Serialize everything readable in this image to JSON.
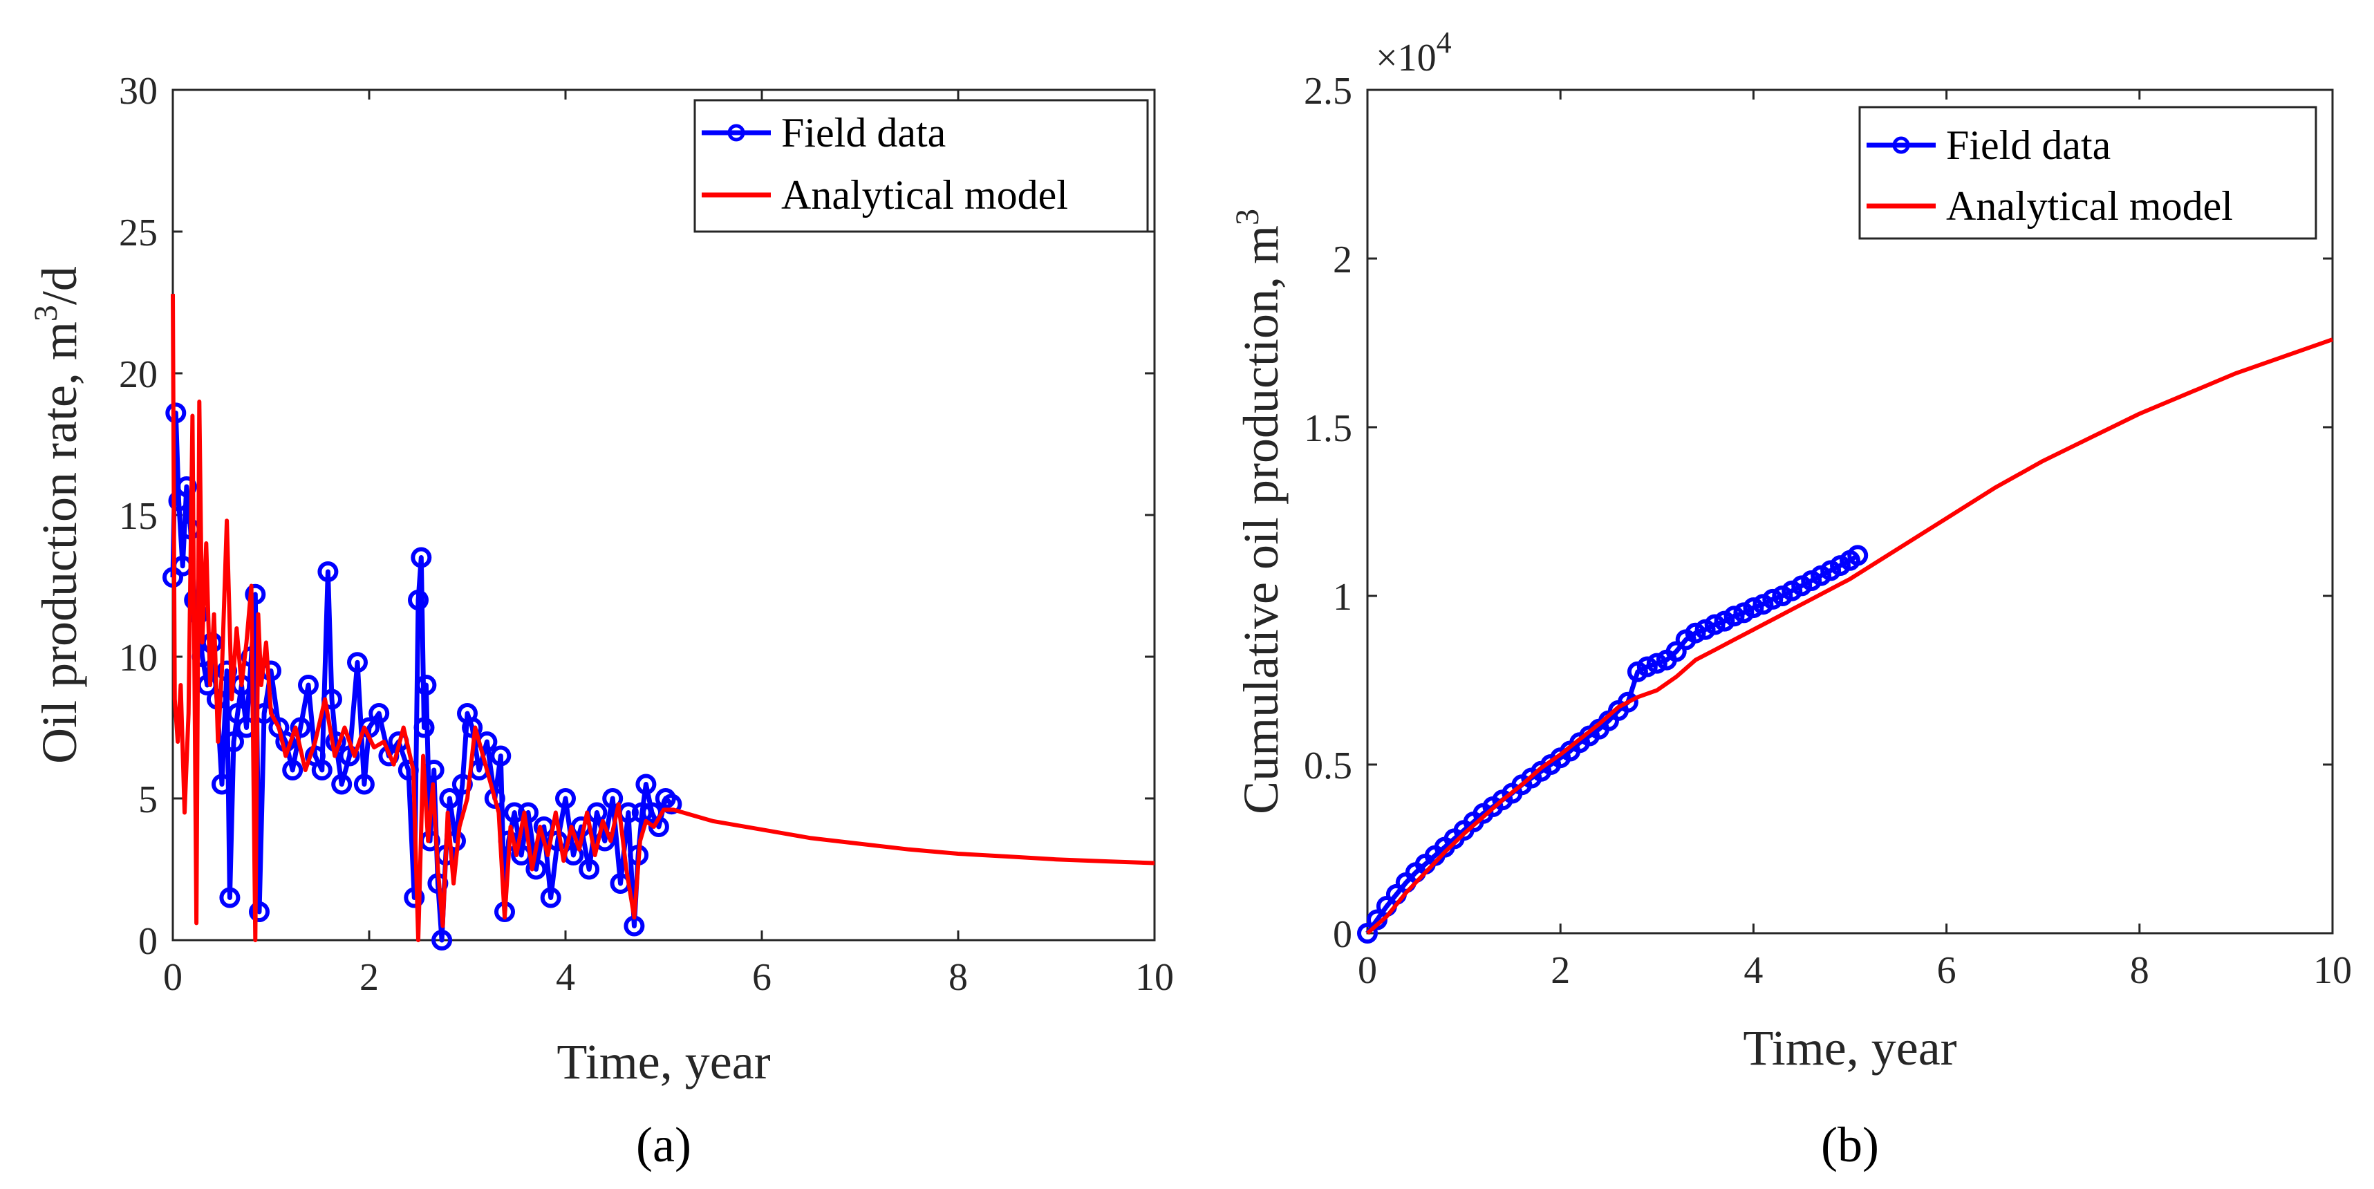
{
  "chart_data": [
    {
      "type": "line",
      "panel_label": "(a)",
      "xlabel": "Time, year",
      "ylabel": "Oil production rate, m",
      "ylabel_superscript": "3",
      "ylabel_suffix": "/d",
      "xlim": [
        0,
        10
      ],
      "ylim": [
        0,
        30
      ],
      "xticks": [
        "0",
        "2",
        "4",
        "6",
        "8",
        "10"
      ],
      "yticks": [
        "0",
        "5",
        "10",
        "15",
        "20",
        "25",
        "30"
      ],
      "grid": false,
      "legend_position": "top-right",
      "colors": {
        "field": "#0000ff",
        "model": "#ff0000"
      },
      "series": [
        {
          "name": "Field data",
          "style": "line-circle",
          "x": [
            0.0,
            0.03,
            0.06,
            0.1,
            0.14,
            0.18,
            0.22,
            0.26,
            0.3,
            0.35,
            0.4,
            0.45,
            0.5,
            0.55,
            0.58,
            0.62,
            0.66,
            0.7,
            0.75,
            0.8,
            0.84,
            0.88,
            0.93,
            1.0,
            1.08,
            1.15,
            1.22,
            1.3,
            1.38,
            1.45,
            1.52,
            1.58,
            1.62,
            1.66,
            1.72,
            1.8,
            1.88,
            1.95,
            2.0,
            2.1,
            2.2,
            2.3,
            2.4,
            2.46,
            2.5,
            2.53,
            2.56,
            2.58,
            2.62,
            2.66,
            2.7,
            2.74,
            2.78,
            2.82,
            2.88,
            2.95,
            3.0,
            3.05,
            3.12,
            3.2,
            3.28,
            3.34,
            3.38,
            3.42,
            3.48,
            3.55,
            3.62,
            3.7,
            3.78,
            3.85,
            3.92,
            4.0,
            4.08,
            4.16,
            4.24,
            4.32,
            4.4,
            4.48,
            4.56,
            4.64,
            4.7,
            4.74,
            4.78,
            4.82,
            4.88,
            4.95,
            5.02,
            5.08
          ],
          "y": [
            12.8,
            18.6,
            15.5,
            13.2,
            16.0,
            14.5,
            12.0,
            11.5,
            10.0,
            9.0,
            10.5,
            8.5,
            5.5,
            9.5,
            1.5,
            7.0,
            8.0,
            9.0,
            7.5,
            10.0,
            12.2,
            1.0,
            8.0,
            9.5,
            7.5,
            7.0,
            6.0,
            7.5,
            9.0,
            6.5,
            6.0,
            13.0,
            8.5,
            7.0,
            5.5,
            6.5,
            9.8,
            5.5,
            7.5,
            8.0,
            6.5,
            7.0,
            6.0,
            1.5,
            12.0,
            13.5,
            7.5,
            9.0,
            3.5,
            6.0,
            2.0,
            0.0,
            3.0,
            5.0,
            3.5,
            5.5,
            8.0,
            7.5,
            6.0,
            7.0,
            5.0,
            6.5,
            1.0,
            3.5,
            4.5,
            3.0,
            4.5,
            2.5,
            4.0,
            1.5,
            3.5,
            5.0,
            3.0,
            4.0,
            2.5,
            4.5,
            3.5,
            5.0,
            2.0,
            4.5,
            0.5,
            3.0,
            4.5,
            5.5,
            4.5,
            4.0,
            5.0,
            4.8
          ]
        },
        {
          "name": "Analytical model",
          "style": "line",
          "x": [
            0.0,
            0.02,
            0.05,
            0.08,
            0.12,
            0.16,
            0.2,
            0.24,
            0.27,
            0.3,
            0.34,
            0.38,
            0.42,
            0.46,
            0.5,
            0.55,
            0.6,
            0.65,
            0.7,
            0.75,
            0.8,
            0.84,
            0.87,
            0.9,
            0.95,
            1.0,
            1.08,
            1.15,
            1.25,
            1.35,
            1.45,
            1.55,
            1.65,
            1.75,
            1.85,
            1.95,
            2.05,
            2.15,
            2.25,
            2.35,
            2.45,
            2.5,
            2.55,
            2.6,
            2.65,
            2.7,
            2.75,
            2.8,
            2.86,
            2.92,
            3.0,
            3.08,
            3.16,
            3.24,
            3.32,
            3.38,
            3.44,
            3.5,
            3.58,
            3.66,
            3.74,
            3.82,
            3.9,
            3.98,
            4.06,
            4.14,
            4.22,
            4.3,
            4.38,
            4.46,
            4.54,
            4.62,
            4.7,
            4.76,
            4.82,
            4.9,
            5.0,
            5.1,
            5.5,
            6.0,
            6.5,
            7.0,
            7.5,
            8.0,
            8.5,
            9.0,
            9.5,
            10.0
          ],
          "y": [
            22.8,
            8.5,
            7.0,
            9.0,
            4.5,
            8.0,
            18.5,
            0.6,
            19.0,
            10.5,
            14.0,
            9.0,
            11.5,
            7.0,
            9.5,
            14.8,
            8.5,
            11.0,
            9.0,
            10.5,
            12.5,
            0.0,
            11.5,
            9.0,
            10.5,
            8.0,
            7.5,
            6.5,
            7.5,
            6.0,
            7.0,
            8.5,
            6.5,
            7.5,
            6.5,
            7.5,
            6.8,
            7.0,
            6.2,
            7.5,
            6.0,
            0.0,
            6.5,
            3.5,
            5.5,
            2.5,
            0.5,
            4.5,
            2.0,
            4.0,
            5.0,
            7.5,
            6.5,
            5.5,
            4.5,
            0.8,
            4.0,
            3.0,
            4.5,
            2.5,
            4.0,
            3.0,
            4.5,
            2.8,
            4.0,
            3.2,
            4.5,
            3.0,
            4.2,
            3.5,
            4.8,
            2.5,
            0.8,
            3.5,
            4.2,
            4.0,
            4.6,
            4.6,
            4.2,
            3.9,
            3.6,
            3.4,
            3.2,
            3.05,
            2.95,
            2.85,
            2.78,
            2.72
          ]
        }
      ]
    },
    {
      "type": "line",
      "panel_label": "(b)",
      "xlabel": "Time, year",
      "ylabel": "Cumulative oil production, m",
      "ylabel_superscript": "3",
      "ylabel_suffix": "",
      "exponent_label": "×10",
      "exponent_superscript": "4",
      "xlim": [
        0,
        10
      ],
      "ylim": [
        0,
        2.5
      ],
      "xticks": [
        "0",
        "2",
        "4",
        "6",
        "8",
        "10"
      ],
      "yticks": [
        "0",
        "0.5",
        "1",
        "1.5",
        "2",
        "2.5"
      ],
      "grid": false,
      "legend_position": "top-right",
      "colors": {
        "field": "#0000ff",
        "model": "#ff0000"
      },
      "series": [
        {
          "name": "Field data",
          "style": "line-circle",
          "x": [
            0.0,
            0.1,
            0.2,
            0.3,
            0.4,
            0.5,
            0.6,
            0.7,
            0.8,
            0.9,
            1.0,
            1.1,
            1.2,
            1.3,
            1.4,
            1.5,
            1.6,
            1.7,
            1.8,
            1.9,
            2.0,
            2.1,
            2.2,
            2.3,
            2.4,
            2.5,
            2.6,
            2.7,
            2.8,
            2.9,
            3.0,
            3.1,
            3.2,
            3.3,
            3.4,
            3.5,
            3.6,
            3.7,
            3.8,
            3.9,
            4.0,
            4.1,
            4.2,
            4.3,
            4.4,
            4.5,
            4.6,
            4.7,
            4.8,
            4.9,
            5.0,
            5.08
          ],
          "y": [
            0.0,
            0.04,
            0.08,
            0.115,
            0.15,
            0.18,
            0.205,
            0.23,
            0.255,
            0.28,
            0.305,
            0.33,
            0.355,
            0.375,
            0.395,
            0.415,
            0.44,
            0.46,
            0.48,
            0.5,
            0.52,
            0.54,
            0.565,
            0.585,
            0.605,
            0.63,
            0.66,
            0.685,
            0.775,
            0.79,
            0.8,
            0.81,
            0.835,
            0.87,
            0.89,
            0.9,
            0.915,
            0.925,
            0.94,
            0.95,
            0.965,
            0.975,
            0.99,
            1.0,
            1.015,
            1.03,
            1.045,
            1.06,
            1.075,
            1.09,
            1.105,
            1.12
          ]
        },
        {
          "name": "Analytical model",
          "style": "line",
          "x": [
            0.0,
            0.2,
            0.4,
            0.6,
            0.8,
            1.0,
            1.2,
            1.4,
            1.6,
            1.8,
            2.0,
            2.2,
            2.4,
            2.6,
            2.8,
            3.0,
            3.2,
            3.4,
            3.6,
            3.8,
            4.0,
            4.2,
            4.4,
            4.6,
            4.8,
            5.0,
            5.5,
            6.0,
            6.5,
            7.0,
            7.5,
            8.0,
            8.5,
            9.0,
            9.5,
            10.0
          ],
          "y": [
            0.0,
            0.05,
            0.12,
            0.18,
            0.24,
            0.295,
            0.345,
            0.395,
            0.44,
            0.49,
            0.53,
            0.575,
            0.62,
            0.67,
            0.7,
            0.72,
            0.76,
            0.81,
            0.84,
            0.87,
            0.9,
            0.93,
            0.96,
            0.99,
            1.02,
            1.05,
            1.14,
            1.23,
            1.32,
            1.4,
            1.47,
            1.54,
            1.6,
            1.66,
            1.71,
            1.76
          ]
        }
      ]
    }
  ]
}
